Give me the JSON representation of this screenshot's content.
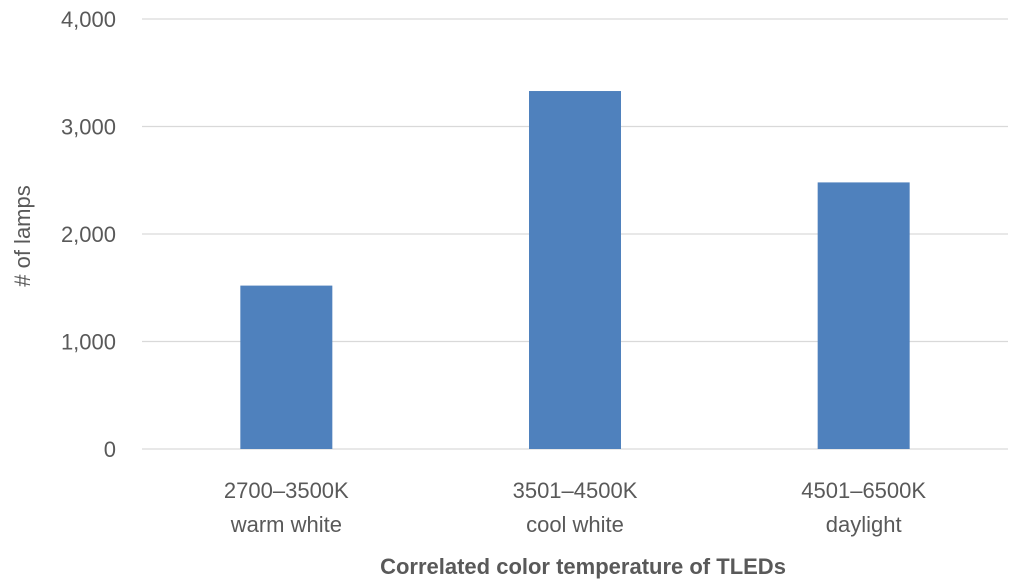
{
  "chart_data": {
    "type": "bar",
    "categories": [
      [
        "2700–3500K",
        "warm white"
      ],
      [
        "3501–4500K",
        "cool white"
      ],
      [
        "4501–6500K",
        "daylight"
      ]
    ],
    "values": [
      1520,
      3330,
      2480
    ],
    "xlabel": "Correlated color temperature of TLEDs",
    "ylabel": "# of lamps",
    "ylim": [
      0,
      4000
    ],
    "yticks": [
      "0",
      "1,000",
      "2,000",
      "3,000",
      "4,000"
    ],
    "ytick_values": [
      0,
      1000,
      2000,
      3000,
      4000
    ],
    "grid": true,
    "bar_color": "#4f81bd",
    "grid_color": "#d9d9d9"
  }
}
